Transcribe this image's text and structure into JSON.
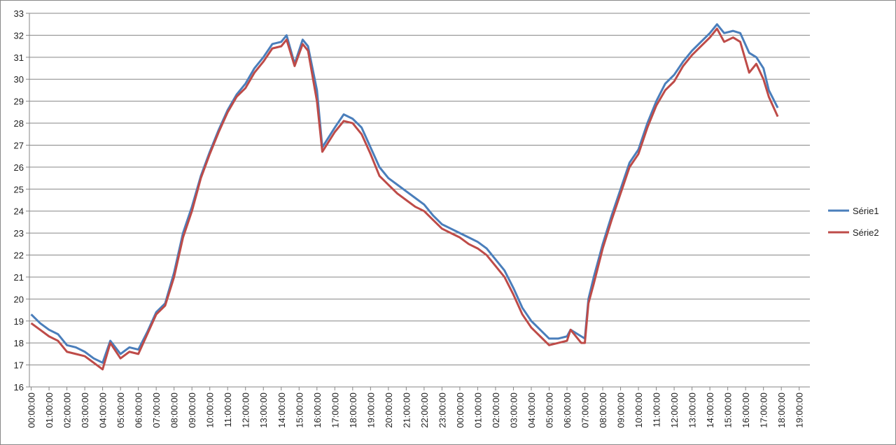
{
  "chart_data": {
    "type": "line",
    "x": [
      0,
      0.5,
      1,
      1.5,
      2,
      2.5,
      3,
      3.5,
      4,
      4.43,
      5,
      5.5,
      6,
      6.5,
      7,
      7.5,
      8,
      8.5,
      9,
      9.5,
      10,
      10.5,
      11,
      11.5,
      12,
      12.5,
      13,
      13.5,
      14,
      14.3,
      14.75,
      15.2,
      15.5,
      16,
      16.3,
      17,
      17.5,
      18,
      18.5,
      19,
      19.5,
      20,
      20.5,
      21,
      21.5,
      22,
      22.5,
      23,
      23.5,
      24,
      24.5,
      25,
      25.5,
      26,
      26.5,
      27,
      27.5,
      28,
      28.5,
      29,
      29.5,
      30,
      30.2,
      30.8,
      31,
      31.2,
      31.5,
      32,
      32.5,
      33,
      33.5,
      34,
      34.5,
      35,
      35.5,
      36,
      36.5,
      37,
      37.5,
      38,
      38.4,
      38.8,
      39.3,
      39.7,
      40.2,
      40.6,
      41,
      41.3,
      41.8
    ],
    "series": [
      {
        "name": "Série1",
        "color": "#4a7ebb",
        "values": [
          19.3,
          18.9,
          18.6,
          18.4,
          17.9,
          17.8,
          17.6,
          17.3,
          17.1,
          18.1,
          17.5,
          17.8,
          17.7,
          18.5,
          19.4,
          19.8,
          21.2,
          23.0,
          24.2,
          25.6,
          26.7,
          27.7,
          28.6,
          29.3,
          29.8,
          30.5,
          31.0,
          31.6,
          31.7,
          32.0,
          30.7,
          31.8,
          31.5,
          29.5,
          26.9,
          27.8,
          28.4,
          28.2,
          27.8,
          26.9,
          26.0,
          25.5,
          25.2,
          24.9,
          24.6,
          24.3,
          23.8,
          23.4,
          23.2,
          23.0,
          22.8,
          22.6,
          22.3,
          21.8,
          21.3,
          20.5,
          19.6,
          19.0,
          18.6,
          18.2,
          18.2,
          18.3,
          18.6,
          18.3,
          18.2,
          20.0,
          21.0,
          22.5,
          23.8,
          25.0,
          26.2,
          26.8,
          28.0,
          29.0,
          29.8,
          30.2,
          30.8,
          31.3,
          31.7,
          32.1,
          32.5,
          32.1,
          32.2,
          32.1,
          31.2,
          31.0,
          30.5,
          29.5,
          28.7
        ]
      },
      {
        "name": "Série2",
        "color": "#be4b48",
        "values": [
          18.9,
          18.6,
          18.3,
          18.1,
          17.6,
          17.5,
          17.4,
          17.1,
          16.8,
          18.0,
          17.3,
          17.6,
          17.5,
          18.4,
          19.3,
          19.7,
          21.0,
          22.8,
          24.0,
          25.5,
          26.6,
          27.6,
          28.5,
          29.2,
          29.6,
          30.3,
          30.8,
          31.4,
          31.5,
          31.8,
          30.6,
          31.6,
          31.3,
          29.0,
          26.7,
          27.6,
          28.1,
          28.0,
          27.5,
          26.6,
          25.6,
          25.2,
          24.8,
          24.5,
          24.2,
          24.0,
          23.6,
          23.2,
          23.0,
          22.8,
          22.5,
          22.3,
          22.0,
          21.5,
          21.0,
          20.2,
          19.3,
          18.7,
          18.3,
          17.9,
          18.0,
          18.1,
          18.6,
          18.0,
          18.0,
          19.8,
          20.7,
          22.3,
          23.6,
          24.8,
          26.0,
          26.6,
          27.8,
          28.8,
          29.5,
          29.9,
          30.6,
          31.1,
          31.5,
          31.9,
          32.3,
          31.7,
          31.9,
          31.7,
          30.3,
          30.7,
          30.0,
          29.2,
          28.3
        ]
      }
    ],
    "xlim": [
      -0.1,
      43.6
    ],
    "ylim": [
      16,
      33
    ],
    "yticks": [
      16,
      17,
      18,
      19,
      20,
      21,
      22,
      23,
      24,
      25,
      26,
      27,
      28,
      29,
      30,
      31,
      32,
      33
    ],
    "xticks": [
      {
        "value": 0,
        "label": "00:00:00"
      },
      {
        "value": 1,
        "label": "01:00:00"
      },
      {
        "value": 2,
        "label": "02:00:00"
      },
      {
        "value": 3,
        "label": "03:00:00"
      },
      {
        "value": 4,
        "label": "04:00:00"
      },
      {
        "value": 5,
        "label": "05:00:00"
      },
      {
        "value": 6,
        "label": "06:00:00"
      },
      {
        "value": 7,
        "label": "07:00:00"
      },
      {
        "value": 8,
        "label": "08:00:00"
      },
      {
        "value": 9,
        "label": "09:00:00"
      },
      {
        "value": 10,
        "label": "10:00:00"
      },
      {
        "value": 11,
        "label": "11:00:00"
      },
      {
        "value": 12,
        "label": "12:00:00"
      },
      {
        "value": 13,
        "label": "13:00:00"
      },
      {
        "value": 14,
        "label": "14:00:00"
      },
      {
        "value": 15,
        "label": "15:00:00"
      },
      {
        "value": 16,
        "label": "16:00:00"
      },
      {
        "value": 17,
        "label": "17:00:00"
      },
      {
        "value": 18,
        "label": "18:00:00"
      },
      {
        "value": 19,
        "label": "19:00:00"
      },
      {
        "value": 20,
        "label": "20:00:00"
      },
      {
        "value": 21,
        "label": "21:00:00"
      },
      {
        "value": 22,
        "label": "22:00:00"
      },
      {
        "value": 23,
        "label": "23:00:00"
      },
      {
        "value": 24,
        "label": "00:00:00"
      },
      {
        "value": 25,
        "label": "01:00:00"
      },
      {
        "value": 26,
        "label": "02:00:00"
      },
      {
        "value": 27,
        "label": "03:00:00"
      },
      {
        "value": 28,
        "label": "04:00:00"
      },
      {
        "value": 29,
        "label": "05:00:00"
      },
      {
        "value": 30,
        "label": "06:00:00"
      },
      {
        "value": 31,
        "label": "07:00:00"
      },
      {
        "value": 32,
        "label": "08:00:00"
      },
      {
        "value": 33,
        "label": "09:00:00"
      },
      {
        "value": 34,
        "label": "10:00:00"
      },
      {
        "value": 35,
        "label": "11:00:00"
      },
      {
        "value": 36,
        "label": "12:00:00"
      },
      {
        "value": 37,
        "label": "13:00:00"
      },
      {
        "value": 38,
        "label": "14:00:00"
      },
      {
        "value": 39,
        "label": "15:00:00"
      },
      {
        "value": 40,
        "label": "16:00:00"
      },
      {
        "value": 41,
        "label": "17:00:00"
      },
      {
        "value": 42,
        "label": "18:00:00"
      },
      {
        "value": 43,
        "label": "19:00:00"
      }
    ],
    "grid": true,
    "legend": "right"
  }
}
